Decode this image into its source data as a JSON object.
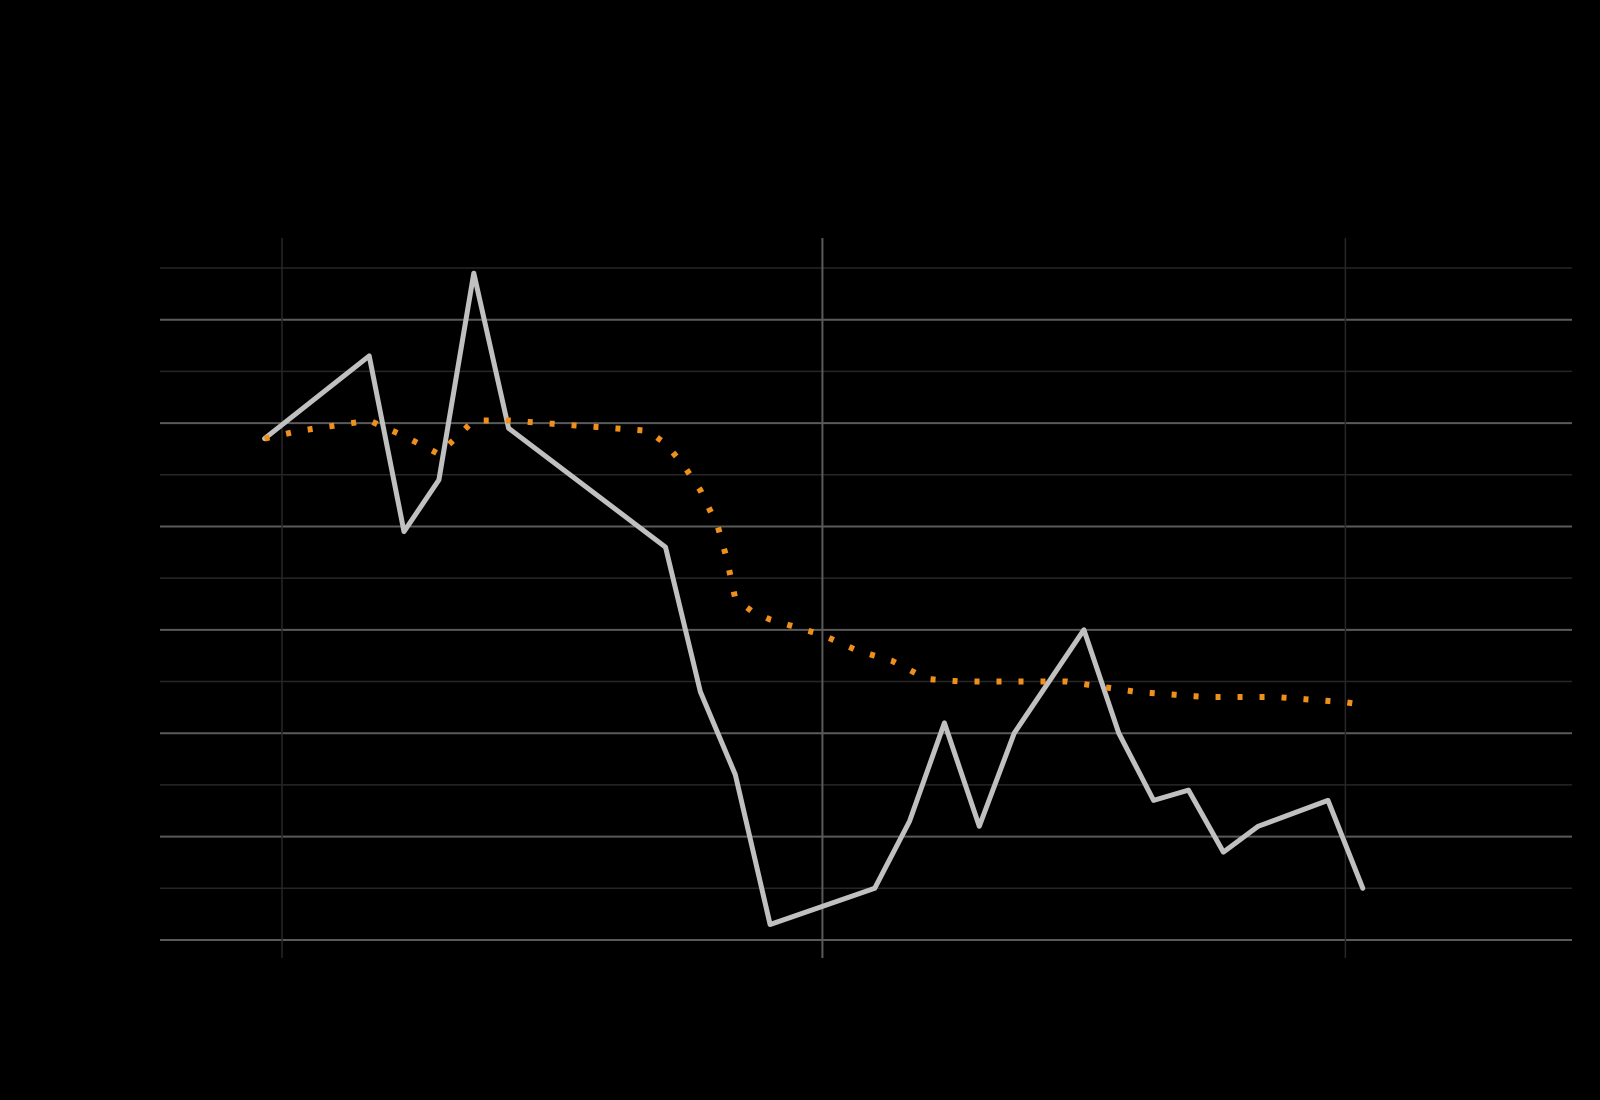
{
  "chart_data": {
    "type": "line",
    "title": "",
    "xlabel": "",
    "ylabel": "",
    "grid": true,
    "legend": "none",
    "x_range": [
      -7,
      74
    ],
    "y_range": [
      0,
      13
    ],
    "x_major_ticks": [
      0,
      31,
      61
    ],
    "x_tick_labels": [
      "",
      "",
      ""
    ],
    "y_major_ticks": [
      0,
      2,
      4,
      6,
      8,
      10,
      12
    ],
    "y_minor_ticks": [
      1,
      3,
      5,
      7,
      9,
      11,
      13
    ],
    "y_tick_labels": [
      "",
      "",
      "",
      "",
      "",
      "",
      ""
    ],
    "series": [
      {
        "color": "#c0c0c0",
        "style": "solid",
        "x": [
          -1,
          5,
          7,
          9,
          11,
          13,
          22,
          24,
          26,
          28,
          34,
          36,
          38,
          40,
          42,
          46,
          48,
          50,
          52,
          54,
          56,
          60,
          62
        ],
        "y": [
          9.7,
          11.3,
          7.9,
          8.9,
          12.9,
          9.9,
          7.6,
          4.8,
          3.2,
          0.3,
          1.0,
          2.3,
          4.2,
          2.2,
          4.0,
          6.0,
          4.0,
          2.7,
          2.9,
          1.7,
          2.2,
          2.7,
          1.0
        ]
      },
      {
        "color": "#f0901c",
        "style": "dotted",
        "x": [
          -1,
          1,
          3,
          5,
          7,
          9,
          11,
          13,
          15,
          17,
          19,
          21,
          22,
          23,
          24,
          25,
          25.5,
          26,
          27,
          28,
          29,
          31,
          33,
          35,
          37,
          39,
          41,
          43,
          45,
          47,
          49,
          51,
          53,
          55,
          57,
          59,
          61,
          62
        ],
        "y": [
          9.7,
          9.85,
          9.95,
          10.05,
          9.75,
          9.4,
          10.05,
          10.05,
          10.0,
          9.95,
          9.9,
          9.85,
          9.6,
          9.2,
          8.7,
          8.0,
          7.4,
          6.6,
          6.35,
          6.2,
          6.1,
          5.9,
          5.6,
          5.4,
          5.05,
          5.0,
          5.0,
          5.0,
          5.0,
          4.9,
          4.8,
          4.75,
          4.7,
          4.7,
          4.7,
          4.65,
          4.6,
          4.55
        ]
      }
    ]
  }
}
